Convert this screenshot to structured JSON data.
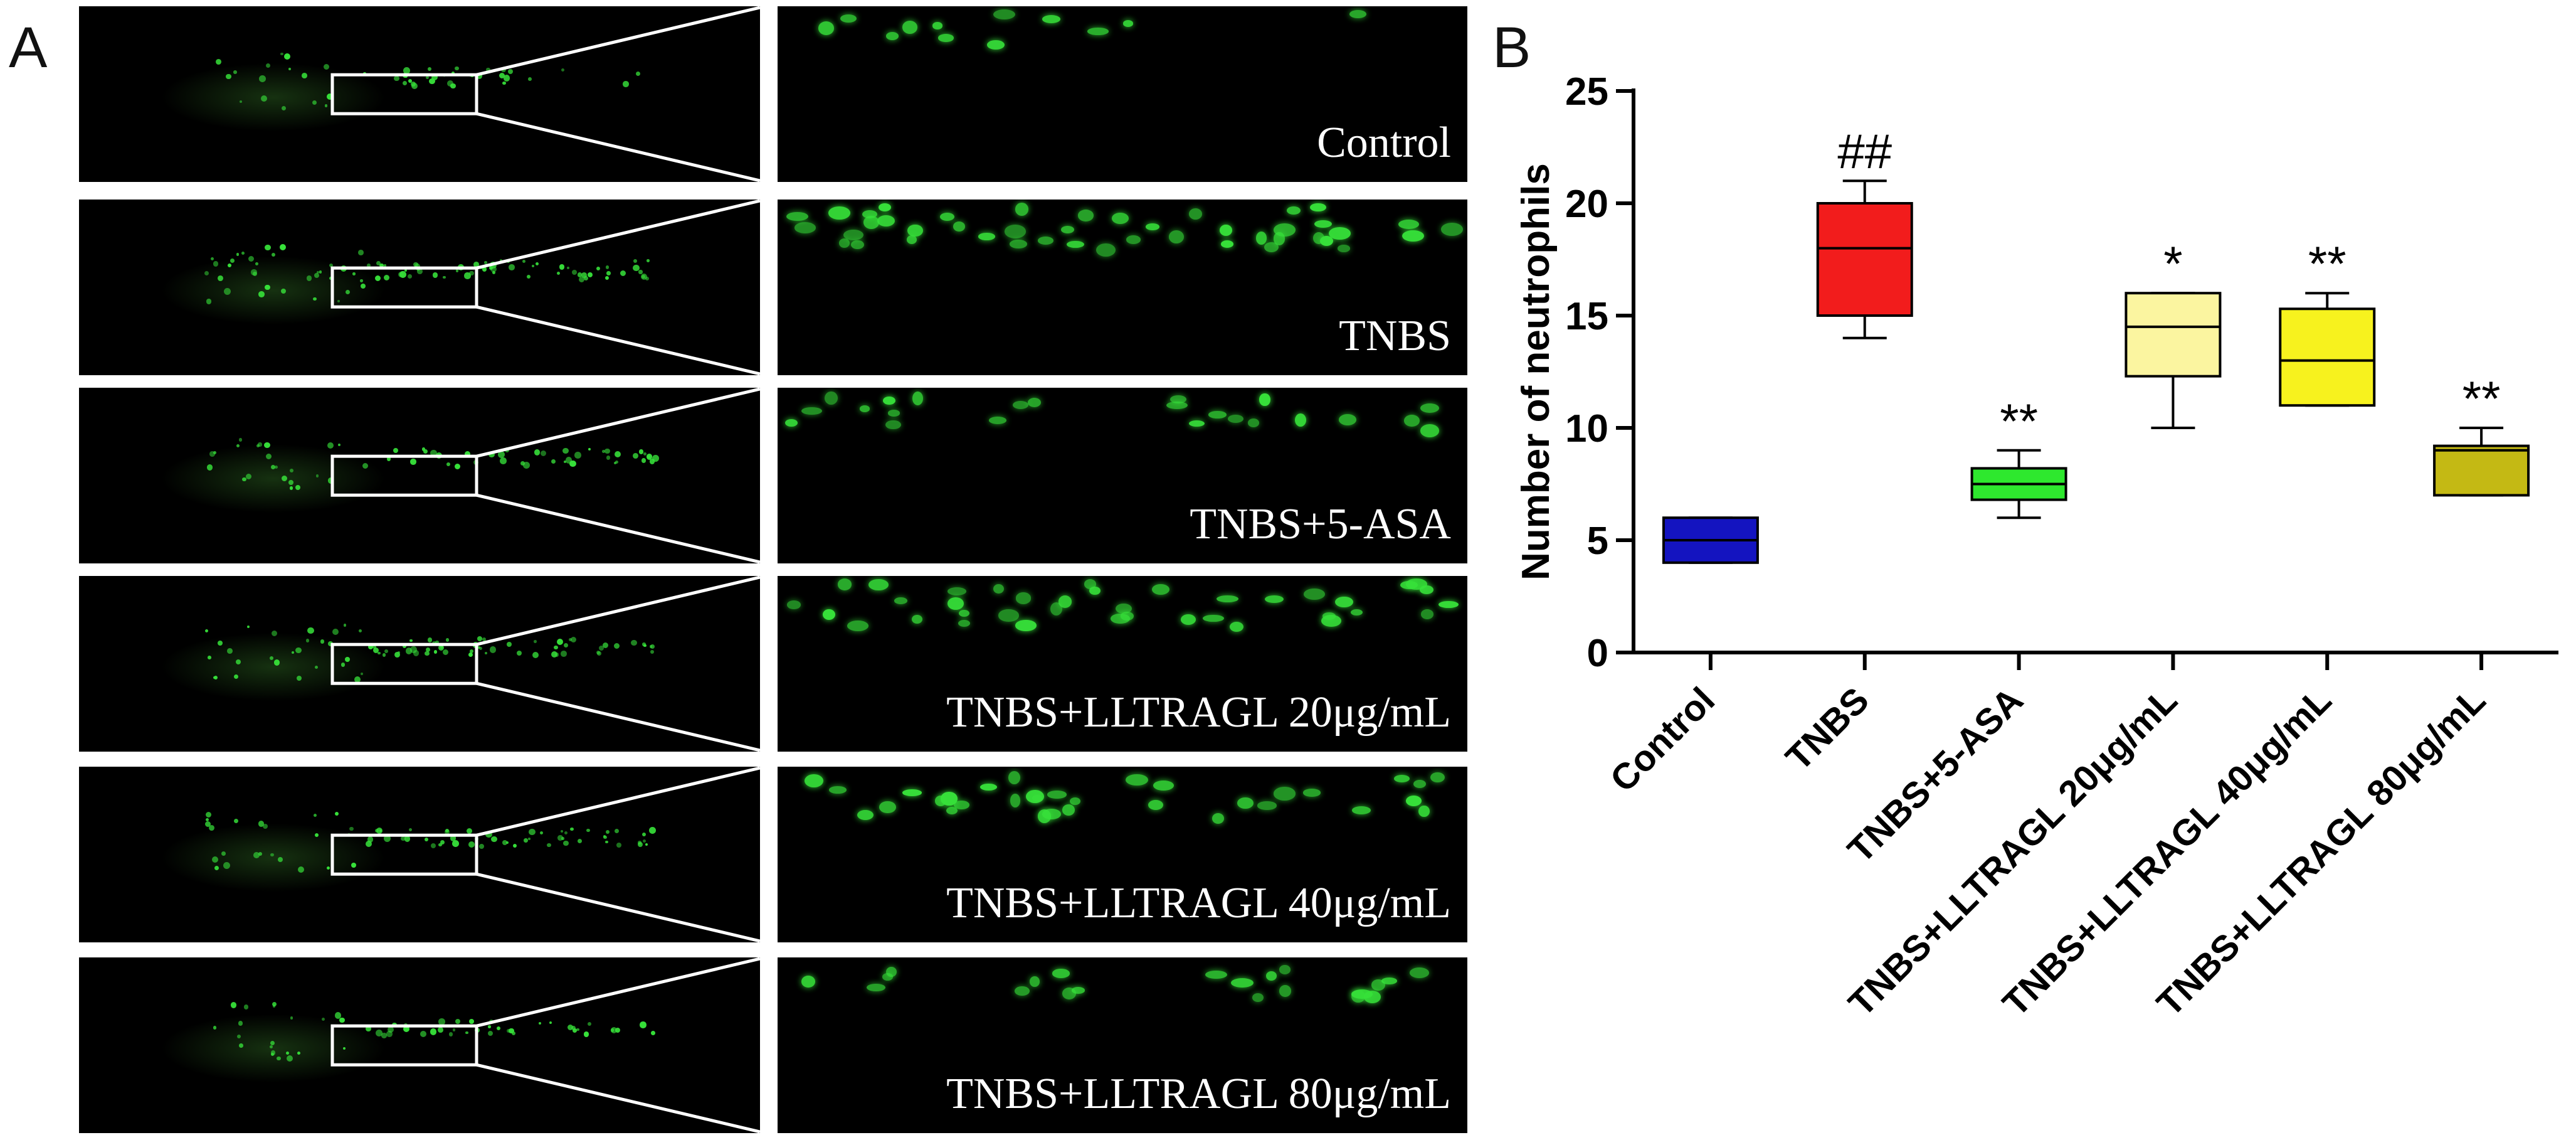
{
  "panels": {
    "a_letter": "A",
    "b_letter": "B"
  },
  "microscopy_rows": [
    {
      "label": "Control",
      "density": 0.15
    },
    {
      "label": "TNBS",
      "density": 1.0
    },
    {
      "label": "TNBS+5-ASA",
      "density": 0.45
    },
    {
      "label": "TNBS+LLTRAGL 20μg/mL",
      "density": 0.85
    },
    {
      "label": "TNBS+LLTRAGL 40μg/mL",
      "density": 0.7
    },
    {
      "label": "TNBS+LLTRAGL 80μg/mL",
      "density": 0.4
    }
  ],
  "colors": {
    "fluorescence": "#37e23a",
    "background": "#000000"
  },
  "chart_data": {
    "type": "box",
    "ylabel": "Number of neutrophils",
    "xlabel": "",
    "ylim": [
      0,
      25
    ],
    "yticks": [
      0,
      5,
      10,
      15,
      20,
      25
    ],
    "grid": false,
    "categories": [
      "Control",
      "TNBS",
      "TNBS+5-ASA",
      "TNBS+LLTRAGL 20μg/mL",
      "TNBS+LLTRAGL 40μg/mL",
      "TNBS+LLTRAGL 80μg/mL"
    ],
    "boxes": [
      {
        "min": 4,
        "q1": 4,
        "median": 5,
        "q3": 6,
        "max": 6,
        "color": "#1414c0",
        "annotation": ""
      },
      {
        "min": 14,
        "q1": 15,
        "median": 18,
        "q3": 20,
        "max": 21,
        "color": "#f21c1c",
        "annotation": "##"
      },
      {
        "min": 6,
        "q1": 6.8,
        "median": 7.5,
        "q3": 8.2,
        "max": 9,
        "color": "#2ee82e",
        "annotation": "**"
      },
      {
        "min": 10,
        "q1": 12.3,
        "median": 14.5,
        "q3": 16,
        "max": 16,
        "color": "#fbf5a0",
        "annotation": "*"
      },
      {
        "min": 11,
        "q1": 11,
        "median": 13,
        "q3": 15.3,
        "max": 16,
        "color": "#f7f21e",
        "annotation": "**"
      },
      {
        "min": 7,
        "q1": 7,
        "median": 9,
        "q3": 9.2,
        "max": 10,
        "color": "#c4b914",
        "annotation": "**"
      }
    ]
  }
}
